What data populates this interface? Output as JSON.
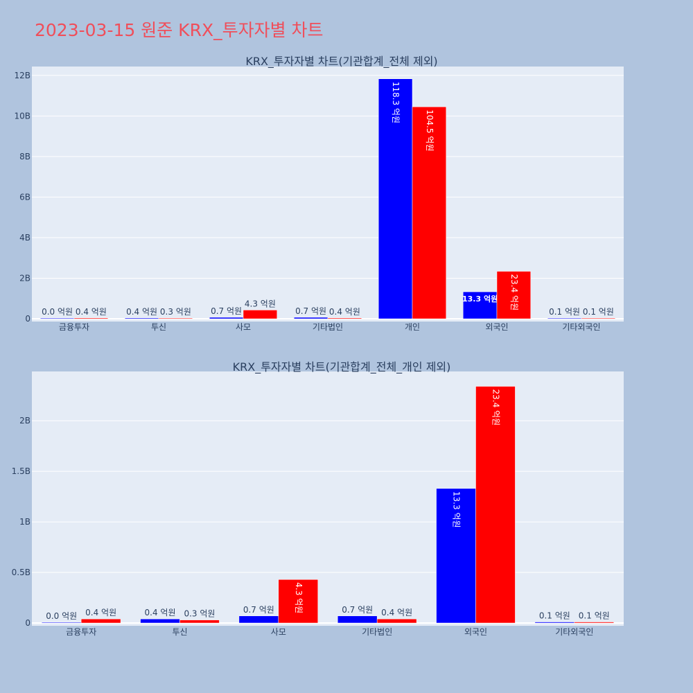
{
  "page": {
    "title": "2023-03-15 원준 KRX_투자자별 차트"
  },
  "colors": {
    "buy": "#0000ff",
    "sell": "#ff0000",
    "page_bg": "#b0c4de",
    "plot_bg": "#e5ecf6",
    "title": "#f04e5a"
  },
  "chart_data": [
    {
      "type": "bar",
      "title": "KRX_투자자별 차트(기관합계_전체 제외)",
      "categories": [
        "금융투자",
        "투신",
        "사모",
        "기타법인",
        "개인",
        "외국인",
        "기타외국인"
      ],
      "series": [
        {
          "values": [
            0.0,
            0.04,
            0.07,
            0.07,
            11.83,
            1.33,
            0.01
          ],
          "labels": [
            "0.0 억원",
            "0.4 억원",
            "0.7 억원",
            "0.7 억원",
            "118.3 억원",
            "13.3 억원",
            "0.1 억원"
          ]
        },
        {
          "values": [
            0.04,
            0.03,
            0.43,
            0.04,
            10.45,
            2.34,
            0.01
          ],
          "labels": [
            "0.4 억원",
            "0.3 억원",
            "4.3 억원",
            "0.4 억원",
            "104.5 억원",
            "23.4 억원",
            "0.1 억원"
          ]
        }
      ],
      "ylim": [
        0,
        12.3
      ],
      "yticks": [
        0,
        2,
        4,
        6,
        8,
        10,
        12
      ],
      "ytick_labels": [
        "0",
        "2B",
        "4B",
        "6B",
        "8B",
        "10B",
        "12B"
      ],
      "grid": true
    },
    {
      "type": "bar",
      "title": "KRX_투자자별 차트(기관합계_전체_개인 제외)",
      "categories": [
        "금융투자",
        "투신",
        "사모",
        "기타법인",
        "외국인",
        "기타외국인"
      ],
      "series": [
        {
          "values": [
            0.0,
            0.04,
            0.07,
            0.07,
            1.33,
            0.01
          ],
          "labels": [
            "0.0 억원",
            "0.4 억원",
            "0.7 억원",
            "0.7 억원",
            "13.3 억원",
            "0.1 억원"
          ]
        },
        {
          "values": [
            0.04,
            0.03,
            0.43,
            0.04,
            2.34,
            0.01
          ],
          "labels": [
            "0.4 억원",
            "0.3 억원",
            "4.3 억원",
            "0.4 억원",
            "23.4 억원",
            "0.1 억원"
          ]
        }
      ],
      "ylim": [
        0,
        2.46
      ],
      "yticks": [
        0,
        0.5,
        1,
        1.5,
        2
      ],
      "ytick_labels": [
        "0",
        "0.5B",
        "1B",
        "1.5B",
        "2B"
      ],
      "grid": true
    }
  ]
}
